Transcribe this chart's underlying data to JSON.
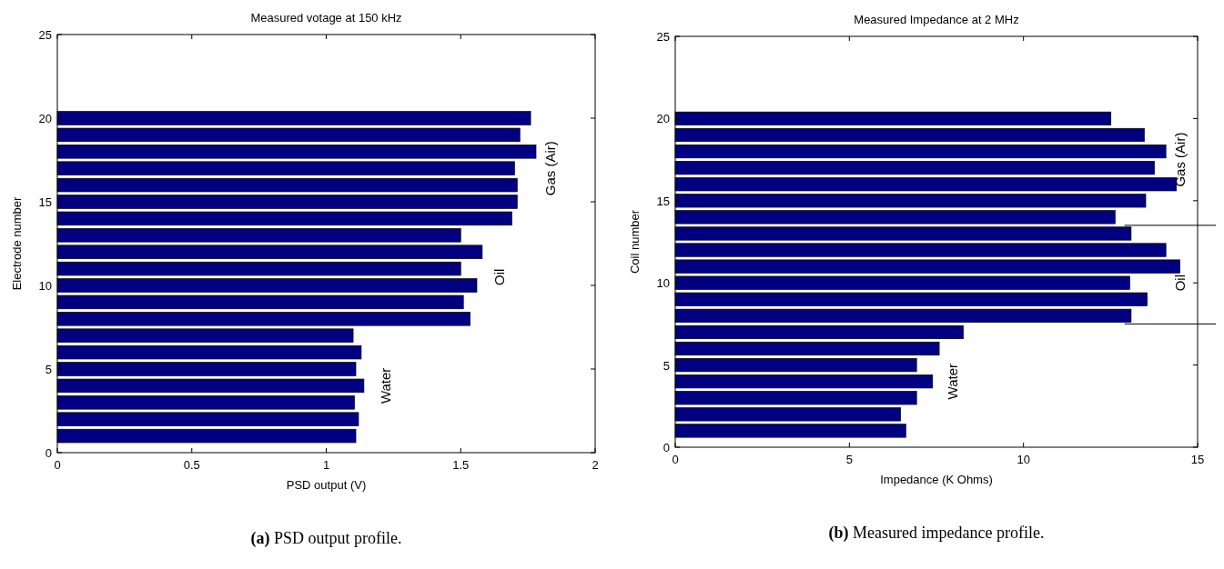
{
  "chart_data": [
    {
      "type": "bar",
      "orientation": "horizontal",
      "title": "Measured votage at 150 kHz",
      "xlabel": "PSD output (V)",
      "ylabel": "Electrode number",
      "x": [
        1,
        2,
        3,
        4,
        5,
        6,
        7,
        8,
        9,
        10,
        11,
        12,
        13,
        14,
        15,
        16,
        17,
        18,
        19,
        20
      ],
      "values": [
        1.11,
        1.12,
        1.105,
        1.14,
        1.11,
        1.13,
        1.1,
        1.535,
        1.51,
        1.56,
        1.5,
        1.58,
        1.5,
        1.69,
        1.71,
        1.71,
        1.7,
        1.78,
        1.72,
        1.76
      ],
      "color": "#000080",
      "xlim": [
        0,
        2
      ],
      "xticks": [
        0,
        0.5,
        1,
        1.5,
        2
      ],
      "ylim": [
        0,
        25
      ],
      "yticks": [
        0,
        5,
        10,
        15,
        20,
        25
      ],
      "annotations": [
        "Gas (Air)",
        "Oil",
        "Water",
        "(a) PSD output profile."
      ]
    },
    {
      "type": "bar",
      "orientation": "horizontal",
      "title": "Measured Impedance at 2 MHz",
      "xlabel": "Impedance (K Ohms)",
      "ylabel": "Coil number",
      "x": [
        1,
        2,
        3,
        4,
        5,
        6,
        7,
        8,
        9,
        10,
        11,
        12,
        13,
        14,
        15,
        16,
        17,
        18,
        19,
        20
      ],
      "values": [
        6.62,
        6.47,
        6.93,
        7.39,
        6.93,
        7.58,
        8.27,
        13.09,
        13.55,
        13.05,
        14.49,
        14.09,
        13.09,
        12.63,
        13.51,
        14.39,
        13.76,
        14.09,
        13.47,
        12.51
      ],
      "color": "#000080",
      "xlim": [
        0,
        15
      ],
      "xticks": [
        0,
        5,
        10,
        15
      ],
      "ylim": [
        0,
        25
      ],
      "yticks": [
        0,
        5,
        10,
        15,
        20,
        25
      ],
      "ref_lines": [
        {
          "axis": "y",
          "value": 13.5,
          "color": "#000000"
        },
        {
          "axis": "y",
          "value": 7.5,
          "color": "#000000"
        }
      ],
      "annotations": [
        "Gas (Air)",
        "Oil",
        "Water",
        "(b) Measured impedance profile."
      ]
    }
  ]
}
